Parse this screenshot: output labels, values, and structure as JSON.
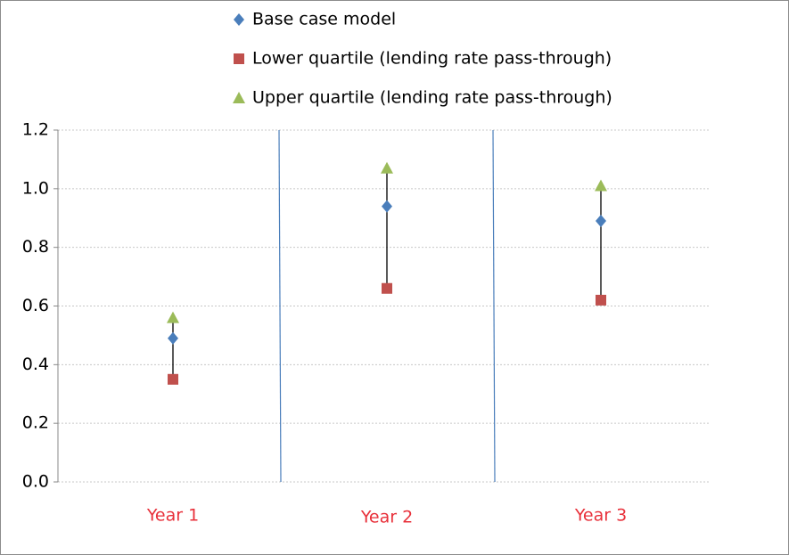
{
  "chart_data": {
    "type": "scatter",
    "categories": [
      "Year 1",
      "Year 2",
      "Year 3"
    ],
    "series": [
      {
        "name": "Base case model",
        "color": "#4a7ebb",
        "marker": "diamond",
        "values": [
          0.49,
          0.94,
          0.89
        ]
      },
      {
        "name": "Lower quartile (lending rate pass-through)",
        "color": "#c0504d",
        "marker": "square",
        "values": [
          0.35,
          0.66,
          0.62
        ]
      },
      {
        "name": "Upper quartile (lending rate pass-through)",
        "color": "#9bbb59",
        "marker": "triangle",
        "values": [
          0.56,
          1.07,
          1.01
        ]
      }
    ],
    "ylim": [
      0,
      1.2
    ],
    "yticks": [
      {
        "value": 0,
        "label": "0.0"
      },
      0.2,
      0.4,
      0.6,
      0.8,
      {
        "value": 1,
        "label": "1.0"
      },
      1.2
    ],
    "grid": true,
    "legend": "top"
  }
}
